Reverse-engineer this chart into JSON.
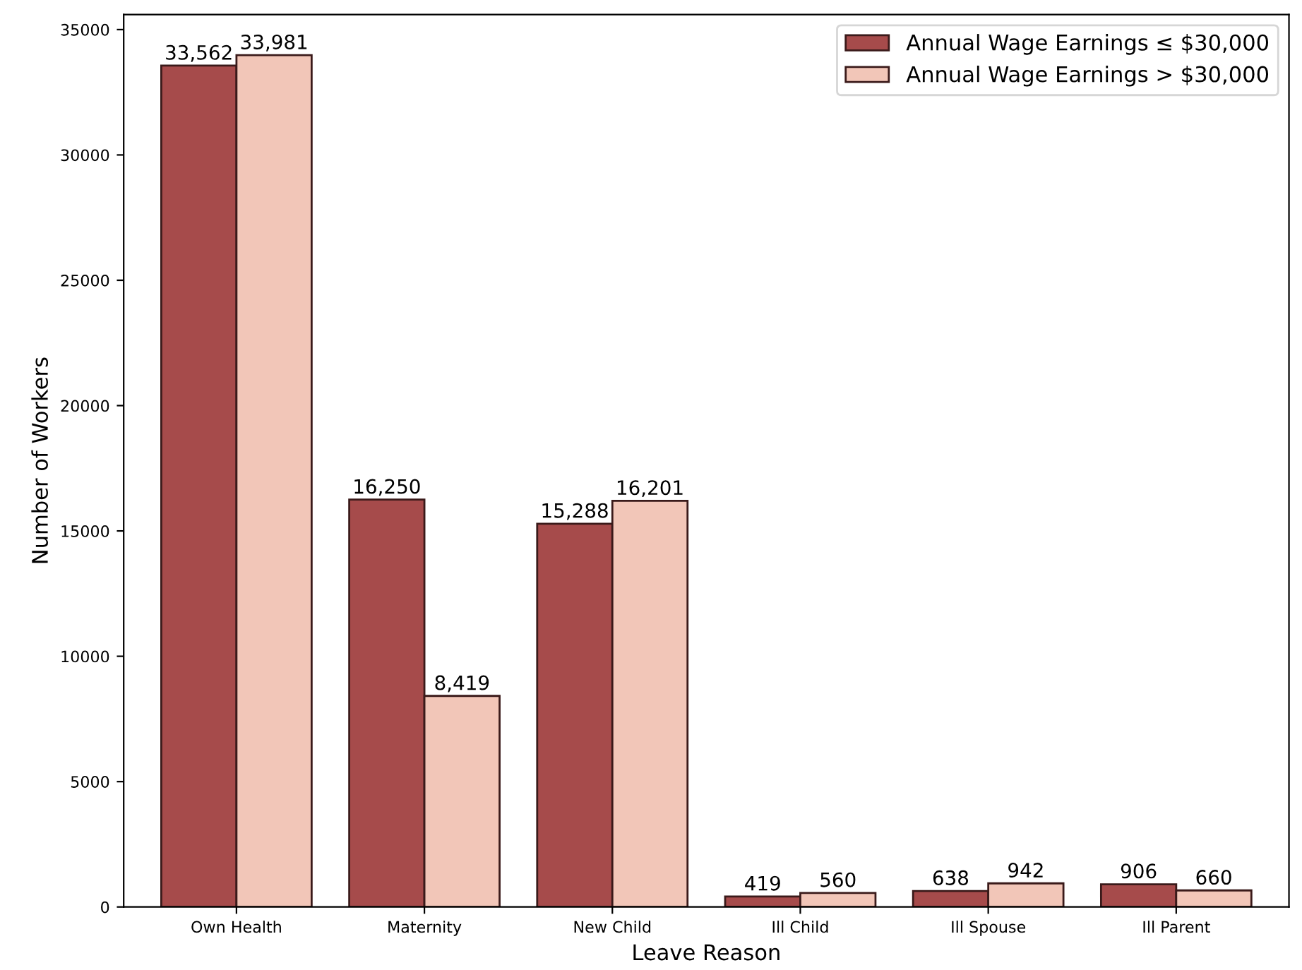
{
  "chart_data": {
    "type": "bar",
    "xlabel": "Leave Reason",
    "ylabel": "Number of Workers",
    "categories": [
      "Own Health",
      "Maternity",
      "New Child",
      "Ill Child",
      "Ill Spouse",
      "Ill Parent"
    ],
    "series": [
      {
        "name": "Annual Wage Earnings ≤ $30,000",
        "color": "#a64b4b",
        "values": [
          33562,
          16250,
          15288,
          419,
          638,
          906
        ],
        "value_labels": [
          "33,562",
          "16,250",
          "15,288",
          "419",
          "638",
          "906"
        ]
      },
      {
        "name": "Annual Wage Earnings > $30,000",
        "color": "#f2c6b8",
        "values": [
          33981,
          8419,
          16201,
          560,
          942,
          660
        ],
        "value_labels": [
          "33,981",
          "8,419",
          "16,201",
          "560",
          "942",
          "660"
        ]
      }
    ],
    "ylim": [
      0,
      35600
    ],
    "yticks": [
      0,
      5000,
      10000,
      15000,
      20000,
      25000,
      30000,
      35000
    ],
    "grid": false,
    "legend": "top right"
  }
}
